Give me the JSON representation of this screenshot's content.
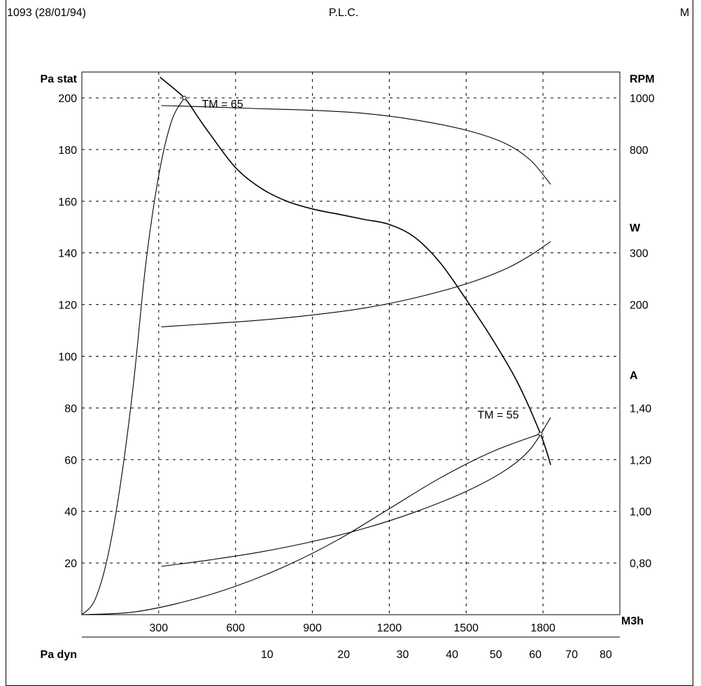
{
  "header": {
    "left": "1093 (28/01/94)",
    "center": "P.L.C.",
    "right": "M"
  },
  "chart_data": {
    "type": "line",
    "grid": true,
    "left_axis": {
      "label": "Pa stat",
      "ticks": [
        20,
        40,
        60,
        80,
        100,
        120,
        140,
        160,
        180,
        200
      ],
      "range": [
        0,
        210
      ]
    },
    "x_axis": {
      "label": "M3h",
      "ticks": [
        300,
        600,
        900,
        1200,
        1500,
        1800
      ],
      "range": [
        0,
        2100
      ]
    },
    "dyn_axis": {
      "label": "Pa dyn",
      "ticks": [
        "10",
        "20",
        "30",
        "40",
        "50",
        "60",
        "70",
        "80"
      ],
      "positions_m3h": [
        723,
        1022,
        1252,
        1445,
        1616,
        1770,
        1912,
        2045
      ]
    },
    "rpm_axis": {
      "label": "RPM",
      "ticks": [
        "1000",
        "800"
      ],
      "values": [
        1000,
        800
      ],
      "pa_at": [
        200,
        180
      ]
    },
    "w_axis": {
      "label": "W",
      "ticks": [
        "300",
        "200"
      ],
      "values": [
        300,
        200
      ],
      "pa_at": [
        140,
        120
      ]
    },
    "a_axis": {
      "label": "A",
      "ticks": [
        "1,40",
        "1,20",
        "1,00",
        "0,80"
      ],
      "values": [
        1.4,
        1.2,
        1.0,
        0.8
      ],
      "pa_at": [
        80,
        60,
        40,
        20
      ]
    },
    "annotations": [
      {
        "text": "TM = 65",
        "x": 400,
        "y": 200
      },
      {
        "text": "TM = 55",
        "x": 1790,
        "y": 70
      }
    ],
    "series": [
      {
        "id": "pressure",
        "axis": "Pa stat",
        "points": [
          [
            305,
            208
          ],
          [
            400,
            200
          ],
          [
            450,
            193
          ],
          [
            500,
            186
          ],
          [
            600,
            173
          ],
          [
            700,
            165
          ],
          [
            800,
            160
          ],
          [
            900,
            157
          ],
          [
            1000,
            155
          ],
          [
            1100,
            153
          ],
          [
            1200,
            151
          ],
          [
            1300,
            146
          ],
          [
            1400,
            136
          ],
          [
            1500,
            122
          ],
          [
            1600,
            107
          ],
          [
            1700,
            90
          ],
          [
            1790,
            70
          ],
          [
            1830,
            58
          ]
        ]
      },
      {
        "id": "rpm",
        "axis": "RPM",
        "points": [
          [
            310,
            970
          ],
          [
            500,
            965
          ],
          [
            700,
            958
          ],
          [
            900,
            952
          ],
          [
            1100,
            940
          ],
          [
            1300,
            915
          ],
          [
            1500,
            875
          ],
          [
            1650,
            825
          ],
          [
            1750,
            760
          ],
          [
            1830,
            665
          ]
        ]
      },
      {
        "id": "power",
        "axis": "W",
        "points": [
          [
            310,
            157
          ],
          [
            500,
            163
          ],
          [
            700,
            170
          ],
          [
            900,
            180
          ],
          [
            1100,
            193
          ],
          [
            1300,
            213
          ],
          [
            1500,
            240
          ],
          [
            1650,
            268
          ],
          [
            1750,
            295
          ],
          [
            1830,
            322
          ]
        ]
      },
      {
        "id": "current",
        "axis": "A",
        "points": [
          [
            310,
            0.787
          ],
          [
            500,
            0.812
          ],
          [
            700,
            0.843
          ],
          [
            900,
            0.883
          ],
          [
            1100,
            0.933
          ],
          [
            1300,
            0.997
          ],
          [
            1500,
            1.077
          ],
          [
            1650,
            1.157
          ],
          [
            1750,
            1.24
          ],
          [
            1830,
            1.363
          ]
        ]
      },
      {
        "id": "system-curve-steep",
        "axis": "Pa stat",
        "points": [
          [
            0,
            0
          ],
          [
            50,
            5.5
          ],
          [
            100,
            22
          ],
          [
            150,
            50
          ],
          [
            200,
            88
          ],
          [
            250,
            136
          ],
          [
            300,
            170
          ],
          [
            350,
            191
          ],
          [
            400,
            200
          ]
        ]
      },
      {
        "id": "system-curve-flat",
        "axis": "Pa stat",
        "points": [
          [
            0,
            0
          ],
          [
            200,
            1.0
          ],
          [
            400,
            5.0
          ],
          [
            600,
            11
          ],
          [
            800,
            19
          ],
          [
            1000,
            29
          ],
          [
            1200,
            41
          ],
          [
            1400,
            53
          ],
          [
            1600,
            63
          ],
          [
            1790,
            70
          ]
        ]
      }
    ]
  }
}
